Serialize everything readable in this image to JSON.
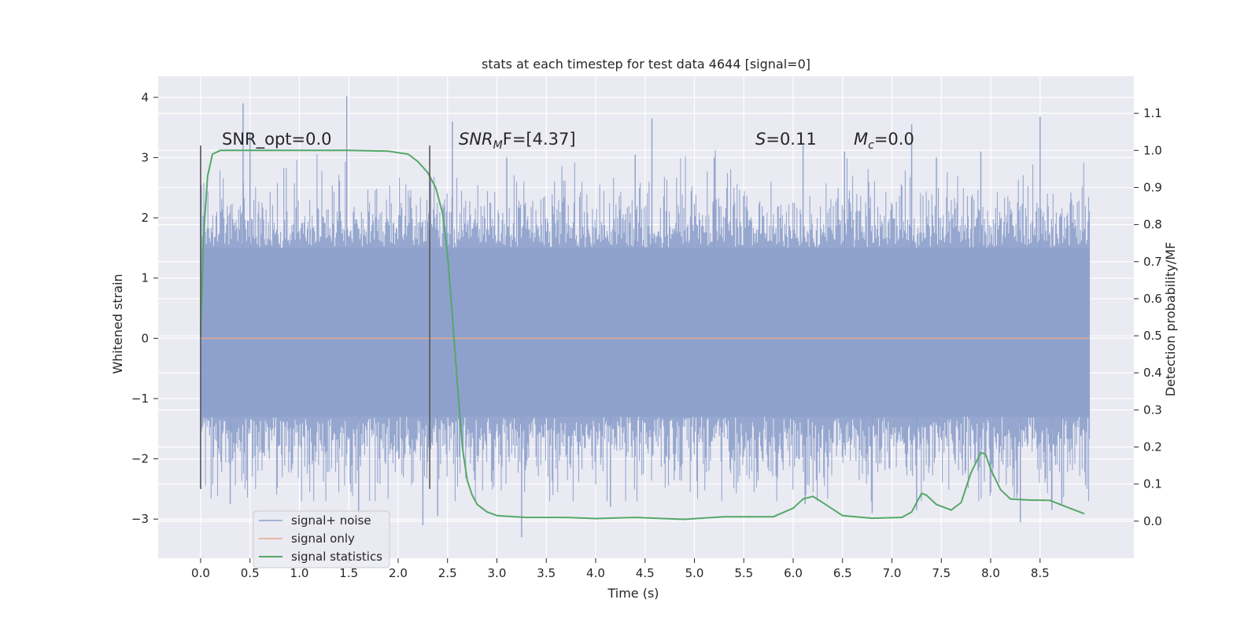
{
  "chart_data": {
    "type": "line",
    "title": "stats at each timestep for test data 4644 [signal=0]",
    "xlabel": "Time (s)",
    "ylabel": "Whitened strain",
    "y2label": "Detection probability/MF",
    "xlim": [
      -0.43,
      9.45
    ],
    "ylim": [
      -3.65,
      4.35
    ],
    "y2lim": [
      -0.1,
      1.2
    ],
    "xticks": [
      0.0,
      0.5,
      1.0,
      1.5,
      2.0,
      2.5,
      3.0,
      3.5,
      4.0,
      4.5,
      5.0,
      5.5,
      6.0,
      6.5,
      7.0,
      7.5,
      8.0,
      8.5
    ],
    "xtick_labels": [
      "0.0",
      "0.5",
      "1.0",
      "1.5",
      "2.0",
      "2.5",
      "3.0",
      "3.5",
      "4.0",
      "4.5",
      "5.0",
      "5.5",
      "6.0",
      "6.5",
      "7.0",
      "7.5",
      "8.0",
      "8.5"
    ],
    "yticks": [
      4,
      3,
      2,
      1,
      0,
      -1,
      -2,
      -3
    ],
    "ytick_labels": [
      "4",
      "3",
      "2",
      "1",
      "0",
      "−1",
      "−2",
      "−3"
    ],
    "y2ticks": [
      1.1,
      1.0,
      0.9,
      0.8,
      0.7,
      0.6,
      0.5,
      0.4,
      0.3,
      0.2,
      0.1,
      0.0
    ],
    "y2tick_labels": [
      "1.1",
      "1.0",
      "0.9",
      "0.8",
      "0.7",
      "0.6",
      "0.5",
      "0.4",
      "0.3",
      "0.2",
      "0.1",
      "0.0"
    ],
    "annotations": {
      "snr_opt": "SNR_opt=0.0",
      "snr_mf_base": "SNR",
      "snr_mf_sub": "M",
      "snr_mf_rest": "F=[4.37]",
      "s_base": "S",
      "s_rest": "=0.11",
      "mc_base": "M",
      "mc_sub": "c",
      "mc_rest": "=0.0"
    },
    "vlines": [
      {
        "x": 0.0,
        "y_range": [
          -2.5,
          3.2
        ]
      },
      {
        "x": 2.32,
        "y_range": [
          -2.5,
          3.2
        ]
      }
    ],
    "noise_series": {
      "name": "signal+ noise",
      "x_range": [
        0.0,
        9.0
      ],
      "band_low": -1.3,
      "band_high": 1.5,
      "color": "#8da0cb",
      "spikes": [
        [
          0.43,
          3.9
        ],
        [
          1.48,
          4.02
        ],
        [
          0.5,
          3.4
        ],
        [
          2.55,
          3.6
        ],
        [
          3.1,
          3.0
        ],
        [
          4.4,
          3.05
        ],
        [
          4.57,
          3.65
        ],
        [
          5.2,
          3.0
        ],
        [
          6.1,
          3.2
        ],
        [
          6.52,
          3.1
        ],
        [
          7.2,
          3.55
        ],
        [
          7.45,
          3.0
        ],
        [
          7.9,
          3.1
        ],
        [
          8.5,
          3.68
        ],
        [
          0.3,
          -2.75
        ],
        [
          1.6,
          -3.0
        ],
        [
          2.25,
          -3.1
        ],
        [
          2.4,
          -2.95
        ],
        [
          3.25,
          -3.3
        ],
        [
          4.15,
          -2.8
        ],
        [
          6.12,
          -2.75
        ],
        [
          6.8,
          -2.9
        ],
        [
          7.25,
          -2.85
        ],
        [
          8.3,
          -3.05
        ],
        [
          8.62,
          -2.85
        ],
        [
          8.72,
          -2.75
        ]
      ]
    },
    "signal_only_series": {
      "name": "signal only",
      "color": "#e8a88a",
      "x": [
        0.0,
        9.0
      ],
      "y": [
        0.0,
        0.0
      ]
    },
    "statistics_series": {
      "name": "signal statistics",
      "axis": "right",
      "color": "#55a868",
      "x": [
        0.0,
        0.03,
        0.07,
        0.12,
        0.2,
        0.3,
        0.5,
        1.0,
        1.5,
        1.9,
        2.1,
        2.2,
        2.3,
        2.38,
        2.45,
        2.5,
        2.55,
        2.6,
        2.65,
        2.7,
        2.75,
        2.8,
        2.9,
        3.0,
        3.3,
        3.7,
        4.0,
        4.4,
        4.9,
        5.3,
        5.8,
        6.0,
        6.1,
        6.2,
        6.3,
        6.5,
        6.8,
        7.1,
        7.2,
        7.3,
        7.35,
        7.45,
        7.6,
        7.7,
        7.8,
        7.9,
        7.95,
        8.0,
        8.1,
        8.2,
        8.4,
        8.6,
        8.8,
        8.95
      ],
      "y": [
        0.5,
        0.77,
        0.93,
        0.99,
        1.0,
        1.0,
        1.0,
        1.0,
        1.0,
        0.998,
        0.99,
        0.97,
        0.94,
        0.9,
        0.83,
        0.72,
        0.55,
        0.37,
        0.2,
        0.11,
        0.07,
        0.045,
        0.025,
        0.015,
        0.01,
        0.01,
        0.007,
        0.01,
        0.005,
        0.012,
        0.012,
        0.035,
        0.06,
        0.067,
        0.05,
        0.015,
        0.008,
        0.01,
        0.025,
        0.075,
        0.07,
        0.045,
        0.03,
        0.05,
        0.13,
        0.185,
        0.18,
        0.14,
        0.085,
        0.06,
        0.057,
        0.056,
        0.035,
        0.02
      ]
    },
    "legend": {
      "placement": "lower-left",
      "items": [
        {
          "label": "signal+ noise",
          "color": "#8da0cb"
        },
        {
          "label": "signal only",
          "color": "#e8a88a"
        },
        {
          "label": "signal statistics",
          "color": "#55a868"
        }
      ]
    }
  }
}
